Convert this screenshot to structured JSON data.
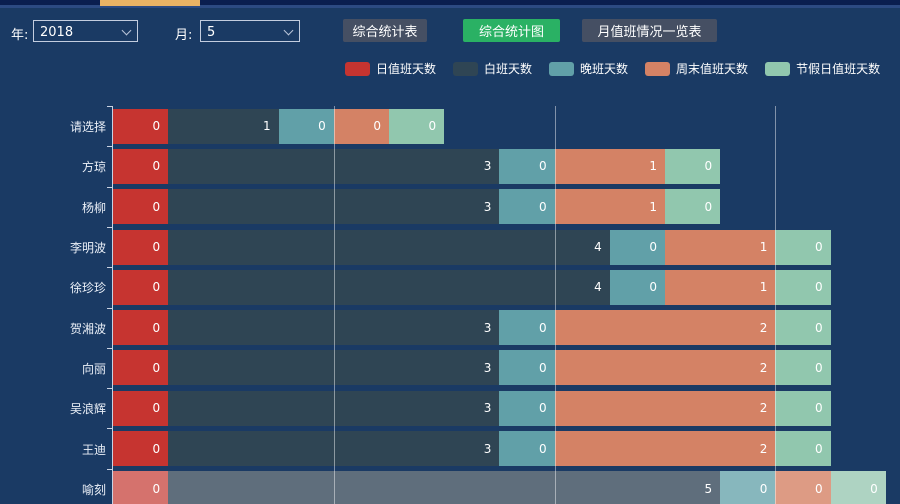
{
  "app": {
    "background": "#1a3a64",
    "top_strip_color": "#0a1e4f",
    "active_tab_accent_color": "#e9b264"
  },
  "toolbar": {
    "year_label": "年:",
    "year_value": "2018",
    "month_label": "月:",
    "month_value": "5",
    "table_button": "综合统计表",
    "chart_button": "综合统计图",
    "overview_button": "月值班情况一览表",
    "active_button_color": "#2ab164",
    "button_color": "#454f63"
  },
  "chart_data": {
    "type": "bar",
    "orientation": "horizontal",
    "stacked": true,
    "legend_position": "top",
    "grid": true,
    "categories": [
      "请选择",
      "方琼",
      "杨柳",
      "李明波",
      "徐珍珍",
      "贺湘波",
      "向丽",
      "吴浪辉",
      "王迪",
      "喻刻"
    ],
    "series": [
      {
        "name": "日值班天数",
        "color": "#c63430",
        "faded_color": "#d5726d",
        "values": [
          0,
          0,
          0,
          0,
          0,
          0,
          0,
          0,
          0,
          0
        ]
      },
      {
        "name": "白班天数",
        "color": "#2f4554",
        "faded_color": "#5f6e7c",
        "values": [
          1,
          3,
          3,
          4,
          4,
          3,
          3,
          3,
          3,
          5
        ]
      },
      {
        "name": "晚班天数",
        "color": "#61a0a8",
        "faded_color": "#87b7bd",
        "values": [
          0,
          0,
          0,
          0,
          0,
          0,
          0,
          0,
          0,
          0
        ]
      },
      {
        "name": "周末值班天数",
        "color": "#d48265",
        "faded_color": "#dd9b84",
        "values": [
          0,
          1,
          1,
          1,
          1,
          2,
          2,
          2,
          2,
          0
        ]
      },
      {
        "name": "节假日值班天数",
        "color": "#91c7ae",
        "faded_color": "#aed3c2",
        "values": [
          0,
          0,
          0,
          0,
          0,
          0,
          0,
          0,
          0,
          0
        ]
      }
    ],
    "faded_category": "喻刻",
    "bar_scale_note": "segment width proportional to max(2*value, 1) units",
    "gridline_units": [
      4,
      8,
      12
    ]
  }
}
